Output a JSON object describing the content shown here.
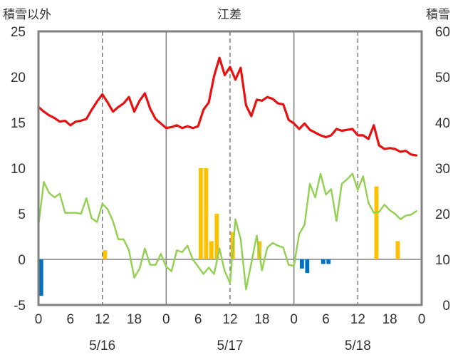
{
  "chart_data": {
    "type": "line",
    "title": "江差",
    "left_axis_label": "積雪以外",
    "right_axis_label": "積雪",
    "left_axis": {
      "min": -5,
      "max": 25,
      "ticks": [
        -5,
        0,
        5,
        10,
        15,
        20,
        25
      ]
    },
    "right_axis": {
      "min": 0,
      "max": 60,
      "ticks": [
        0,
        10,
        20,
        30,
        40,
        50,
        60
      ]
    },
    "x_range_hours": [
      0,
      72
    ],
    "x_ticks": [
      {
        "hour": 0,
        "label": "0"
      },
      {
        "hour": 6,
        "label": "6"
      },
      {
        "hour": 12,
        "label": "12"
      },
      {
        "hour": 18,
        "label": "18"
      },
      {
        "hour": 24,
        "label": "0"
      },
      {
        "hour": 30,
        "label": "6"
      },
      {
        "hour": 36,
        "label": "12"
      },
      {
        "hour": 42,
        "label": "18"
      },
      {
        "hour": 48,
        "label": "0"
      },
      {
        "hour": 54,
        "label": "6"
      },
      {
        "hour": 60,
        "label": "12"
      },
      {
        "hour": 66,
        "label": "18"
      },
      {
        "hour": 72,
        "label": "0"
      }
    ],
    "date_labels": [
      {
        "hour": 12,
        "label": "5/16"
      },
      {
        "hour": 36,
        "label": "5/17"
      },
      {
        "hour": 60,
        "label": "5/18"
      }
    ],
    "day_boundaries": [
      24,
      48
    ],
    "dashed_gridlines": [
      12,
      36,
      60
    ],
    "colors": {
      "red": "#e81010",
      "green": "#92d050",
      "bar_pos": "#ffc000",
      "bar_neg": "#0070c0",
      "axis": "#808080"
    },
    "series": [
      {
        "color": "red",
        "axis": "left",
        "values": [
          [
            0,
            16.7
          ],
          [
            1,
            16.2
          ],
          [
            2,
            15.8
          ],
          [
            3,
            15.5
          ],
          [
            4,
            15.1
          ],
          [
            5,
            15.2
          ],
          [
            6,
            14.7
          ],
          [
            7,
            15.1
          ],
          [
            8,
            15.2
          ],
          [
            9,
            15.4
          ],
          [
            10,
            16.4
          ],
          [
            11,
            17.3
          ],
          [
            12,
            18.1
          ],
          [
            13,
            17.2
          ],
          [
            14,
            16.2
          ],
          [
            15,
            16.7
          ],
          [
            16,
            17.1
          ],
          [
            17,
            17.8
          ],
          [
            18,
            16.2
          ],
          [
            19,
            17.4
          ],
          [
            20,
            18.2
          ],
          [
            21,
            16.5
          ],
          [
            22,
            15.4
          ],
          [
            23,
            14.9
          ],
          [
            24,
            14.4
          ],
          [
            25,
            14.5
          ],
          [
            26,
            14.7
          ],
          [
            27,
            14.4
          ],
          [
            28,
            14.6
          ],
          [
            29,
            14.4
          ],
          [
            30,
            14.6
          ],
          [
            31,
            16.4
          ],
          [
            32,
            17.2
          ],
          [
            33,
            20.1
          ],
          [
            34,
            22.1
          ],
          [
            35,
            20.2
          ],
          [
            36,
            21.1
          ],
          [
            37,
            19.7
          ],
          [
            38,
            21.0
          ],
          [
            39,
            16.9
          ],
          [
            40,
            15.7
          ],
          [
            41,
            17.5
          ],
          [
            42,
            17.4
          ],
          [
            43,
            17.8
          ],
          [
            44,
            17.6
          ],
          [
            45,
            17.1
          ],
          [
            46,
            17.0
          ],
          [
            47,
            15.3
          ],
          [
            48,
            14.9
          ],
          [
            49,
            14.3
          ],
          [
            50,
            14.9
          ],
          [
            51,
            14.2
          ],
          [
            52,
            13.9
          ],
          [
            53,
            13.6
          ],
          [
            54,
            13.4
          ],
          [
            55,
            13.6
          ],
          [
            56,
            14.3
          ],
          [
            57,
            14.1
          ],
          [
            58,
            14.2
          ],
          [
            59,
            14.3
          ],
          [
            60,
            13.6
          ],
          [
            61,
            13.6
          ],
          [
            62,
            13.2
          ],
          [
            63,
            14.7
          ],
          [
            64,
            12.5
          ],
          [
            65,
            12.1
          ],
          [
            66,
            12.2
          ],
          [
            67,
            12.1
          ],
          [
            68,
            11.8
          ],
          [
            69,
            11.9
          ],
          [
            70,
            11.5
          ],
          [
            71,
            11.4
          ]
        ]
      },
      {
        "color": "green",
        "axis": "left",
        "values": [
          [
            0,
            3.7
          ],
          [
            1,
            8.5
          ],
          [
            2,
            7.3
          ],
          [
            3,
            6.8
          ],
          [
            4,
            7.2
          ],
          [
            5,
            5.1
          ],
          [
            6,
            5.1
          ],
          [
            7,
            5.1
          ],
          [
            8,
            5.0
          ],
          [
            9,
            6.7
          ],
          [
            10,
            4.5
          ],
          [
            11,
            4.1
          ],
          [
            12,
            6.1
          ],
          [
            13,
            5.5
          ],
          [
            14,
            4.2
          ],
          [
            15,
            2.2
          ],
          [
            16,
            2.2
          ],
          [
            17,
            1.0
          ],
          [
            18,
            -2.0
          ],
          [
            19,
            -1.0
          ],
          [
            20,
            1.2
          ],
          [
            21,
            -0.6
          ],
          [
            22,
            -0.6
          ],
          [
            23,
            0.6
          ],
          [
            24,
            -0.8
          ],
          [
            25,
            -1.3
          ],
          [
            26,
            1.0
          ],
          [
            27,
            0.8
          ],
          [
            28,
            1.5
          ],
          [
            29,
            0.0
          ],
          [
            30,
            -0.8
          ],
          [
            31,
            -1.6
          ],
          [
            32,
            -0.9
          ],
          [
            33,
            -1.6
          ],
          [
            34,
            1.2
          ],
          [
            35,
            -1.3
          ],
          [
            36,
            -2.6
          ],
          [
            37,
            4.4
          ],
          [
            38,
            2.2
          ],
          [
            39,
            -3.3
          ],
          [
            40,
            -0.4
          ],
          [
            41,
            2.6
          ],
          [
            42,
            -1.2
          ],
          [
            43,
            1.3
          ],
          [
            44,
            1.8
          ],
          [
            45,
            1.5
          ],
          [
            46,
            1.3
          ],
          [
            47,
            -0.6
          ],
          [
            48,
            -0.7
          ],
          [
            49,
            2.8
          ],
          [
            50,
            3.8
          ],
          [
            51,
            8.3
          ],
          [
            52,
            6.8
          ],
          [
            53,
            9.4
          ],
          [
            54,
            7.1
          ],
          [
            55,
            7.7
          ],
          [
            56,
            4.2
          ],
          [
            57,
            8.3
          ],
          [
            58,
            8.8
          ],
          [
            59,
            9.4
          ],
          [
            60,
            7.6
          ],
          [
            61,
            9.1
          ],
          [
            62,
            6.2
          ],
          [
            63,
            5.1
          ],
          [
            64,
            5.2
          ],
          [
            65,
            6.0
          ],
          [
            66,
            5.4
          ],
          [
            67,
            5.0
          ],
          [
            68,
            4.4
          ],
          [
            69,
            4.8
          ],
          [
            70,
            4.9
          ],
          [
            71,
            5.3
          ]
        ]
      }
    ],
    "bars": {
      "axis": "left",
      "values": [
        [
          0,
          -4.0
        ],
        [
          12,
          1.0
        ],
        [
          30,
          10.0
        ],
        [
          31,
          10.0
        ],
        [
          32,
          2.0
        ],
        [
          33,
          5.0
        ],
        [
          36,
          3.0
        ],
        [
          41,
          2.0
        ],
        [
          49,
          -1.0
        ],
        [
          50,
          -1.5
        ],
        [
          53,
          -0.5
        ],
        [
          54,
          -0.5
        ],
        [
          63,
          8.0
        ],
        [
          67,
          2.0
        ]
      ]
    }
  }
}
